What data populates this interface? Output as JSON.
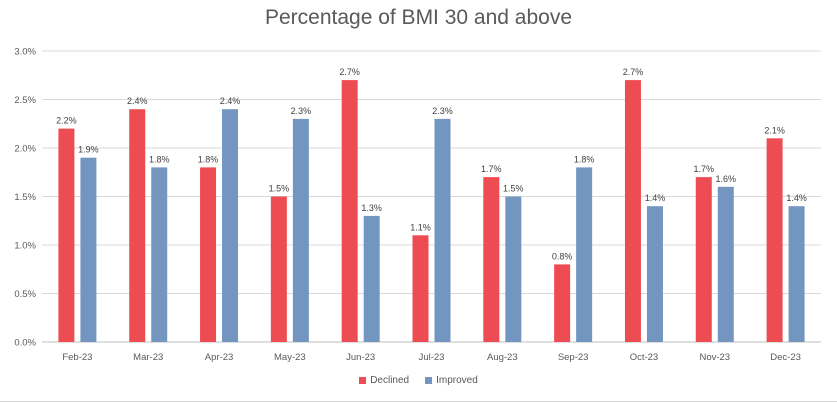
{
  "chart_data": {
    "type": "bar",
    "title": "Percentage of BMI 30 and above",
    "categories": [
      "Feb-23",
      "Mar-23",
      "Apr-23",
      "May-23",
      "Jun-23",
      "Jul-23",
      "Aug-23",
      "Sep-23",
      "Oct-23",
      "Nov-23",
      "Dec-23"
    ],
    "series": [
      {
        "name": "Declined",
        "color": "#ed4c53",
        "values": [
          2.2,
          2.4,
          1.8,
          1.5,
          2.7,
          1.1,
          1.7,
          0.8,
          2.7,
          1.7,
          2.1
        ],
        "labels": [
          "2.2%",
          "2.4%",
          "1.8%",
          "1.5%",
          "2.7%",
          "1.1%",
          "1.7%",
          "0.8%",
          "2.7%",
          "1.7%",
          "2.1%"
        ]
      },
      {
        "name": "Improved",
        "color": "#7296c0",
        "values": [
          1.9,
          1.8,
          2.4,
          2.3,
          1.3,
          2.3,
          1.5,
          1.8,
          1.4,
          1.6,
          1.4
        ],
        "labels": [
          "1.9%",
          "1.8%",
          "2.4%",
          "2.3%",
          "1.3%",
          "2.3%",
          "1.5%",
          "1.8%",
          "1.4%",
          "1.6%",
          "1.4%"
        ]
      }
    ],
    "ylim": [
      0,
      3.0
    ],
    "yticks": [
      "0.0%",
      "0.5%",
      "1.0%",
      "1.5%",
      "2.0%",
      "2.5%",
      "3.0%"
    ],
    "grid": true,
    "legend_position": "bottom"
  }
}
